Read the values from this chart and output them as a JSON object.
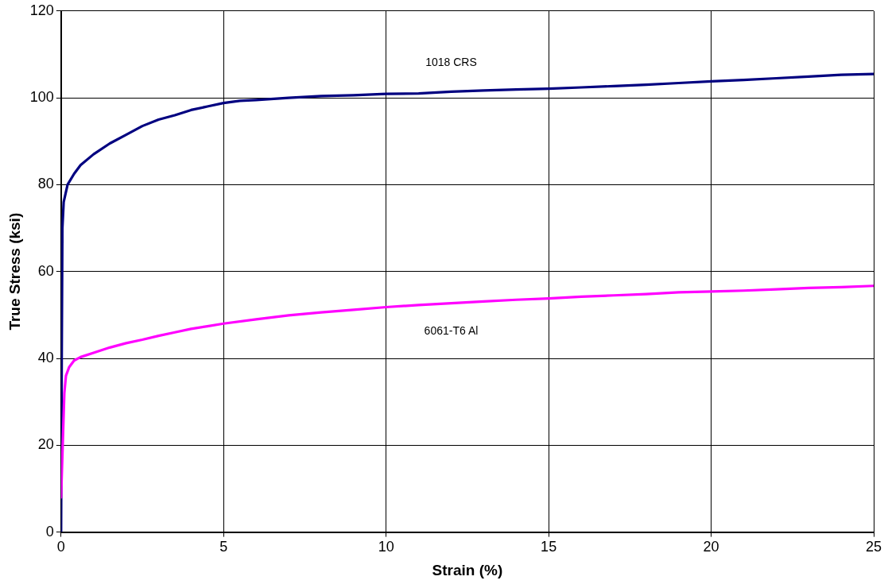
{
  "chart_data": {
    "type": "line",
    "xlabel": "Strain (%)",
    "ylabel": "True Stress (ksi)",
    "xlim": [
      0,
      25
    ],
    "xticks": [
      0,
      5,
      10,
      15,
      20,
      25
    ],
    "ylim": [
      0,
      120
    ],
    "yticks": [
      0,
      20,
      40,
      60,
      80,
      100,
      120
    ],
    "grid": true,
    "legend": false,
    "marker": "none",
    "line_style": "solid",
    "series": [
      {
        "name": "1018 CRS",
        "color": "#000080",
        "x": [
          0,
          0.02,
          0.04,
          0.08,
          0.2,
          0.4,
          0.6,
          1,
          1.5,
          2,
          2.5,
          3,
          3.5,
          4,
          4.5,
          5,
          5.5,
          6,
          7,
          8,
          9,
          10,
          11,
          12,
          13,
          14,
          15,
          16,
          17,
          18,
          19,
          20,
          21,
          22,
          23,
          24,
          25
        ],
        "values": [
          0,
          40,
          70,
          76,
          80,
          82.5,
          84.5,
          87,
          89.5,
          91.5,
          93.5,
          95,
          96,
          97.2,
          98,
          98.8,
          99.3,
          99.5,
          100,
          100.4,
          100.6,
          100.9,
          101,
          101.4,
          101.7,
          101.9,
          102.1,
          102.4,
          102.7,
          103,
          103.4,
          103.8,
          104.1,
          104.5,
          104.9,
          105.3,
          105.5
        ]
      },
      {
        "name": "6061-T6 Al",
        "color": "#ff00ff",
        "x": [
          0,
          0.05,
          0.1,
          0.15,
          0.25,
          0.4,
          0.6,
          1,
          1.5,
          2,
          2.5,
          3,
          3.5,
          4,
          4.5,
          5,
          6,
          7,
          8,
          9,
          10,
          11,
          12,
          13,
          14,
          15,
          16,
          17,
          18,
          19,
          20,
          21,
          22,
          23,
          24,
          25
        ],
        "values": [
          8,
          20,
          32,
          36,
          38,
          39.5,
          40.3,
          41.3,
          42.5,
          43.5,
          44.3,
          45.2,
          46,
          46.8,
          47.4,
          48,
          49,
          49.9,
          50.6,
          51.2,
          51.8,
          52.3,
          52.7,
          53.1,
          53.5,
          53.8,
          54.2,
          54.5,
          54.8,
          55.2,
          55.4,
          55.6,
          55.9,
          56.2,
          56.4,
          56.7
        ]
      }
    ]
  }
}
